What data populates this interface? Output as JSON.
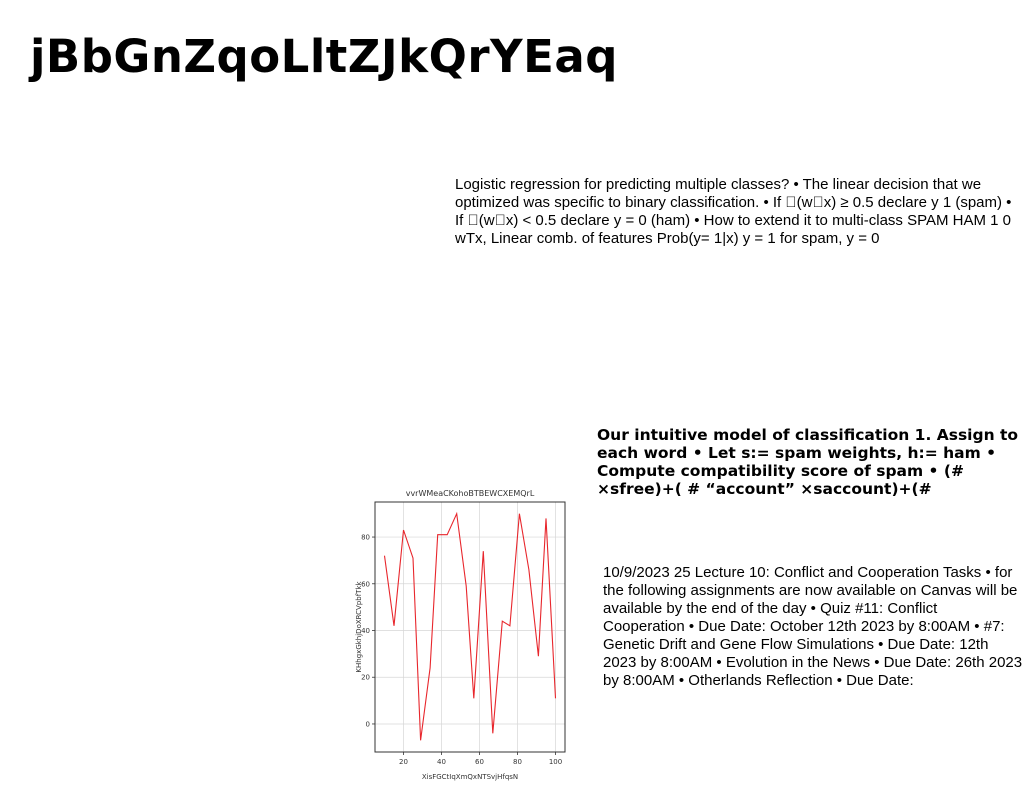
{
  "title": "jBbGnZqoLltZJkQrYEaq",
  "paragraphs": {
    "logistic": "Logistic regression for predicting multiple classes? • The linear decision that we optimized was specific to binary classification. • If \u0000(w\u0000x) ≥ 0.5 declare y 1 (spam) • If \u0000(w\u0000x) < 0.5 declare y = 0 (ham) • How to extend it to multi-class SPAM HAM 1 0 wTx, Linear comb. of features Prob(y= 1|x) y = 1 for spam, y = 0",
    "intuitive": "Our intuitive model of classification 1. Assign to each word • Let s:= spam weights, h:= ham • Compute compatibility score of spam • (# ×sfree)+( # “account” ×saccount)+(#",
    "lecture": "10/9/2023 25 Lecture 10: Conflict and Cooperation Tasks • for the following assignments are now available on Canvas will be available by the end of the day • Quiz #11: Conflict Cooperation • Due Date: October 12th 2023 by 8:00AM • #7: Genetic Drift and Gene Flow Simulations • Due Date: 12th 2023 by 8:00AM • Evolution in the News • Due Date: 26th 2023 by 8:00AM • Otherlands Reflection • Due Date:"
  },
  "chart_data": {
    "type": "line",
    "title": "vvrWMeaCKohoBTBEWCXEMQrL",
    "xlabel": "XisFGCtIqXmQxNTSvjHfqsN",
    "ylabel": "KHhgxGkhjDoXRCVpbfTkk",
    "x": [
      10,
      15,
      20,
      25,
      29,
      34,
      38,
      43,
      48,
      53,
      57,
      62,
      67,
      72,
      76,
      81,
      86,
      91,
      95,
      100
    ],
    "values": [
      72,
      42,
      83,
      71,
      -7,
      24,
      81,
      81,
      90,
      59,
      11,
      74,
      -4,
      44,
      42,
      90,
      66,
      29,
      88,
      11
    ],
    "xlim": [
      5,
      105
    ],
    "ylim": [
      -12,
      95
    ],
    "xticks": [
      20,
      40,
      60,
      80,
      100
    ],
    "yticks": [
      0,
      20,
      40,
      60,
      80
    ],
    "grid": true,
    "line_color": "#e8262c"
  }
}
